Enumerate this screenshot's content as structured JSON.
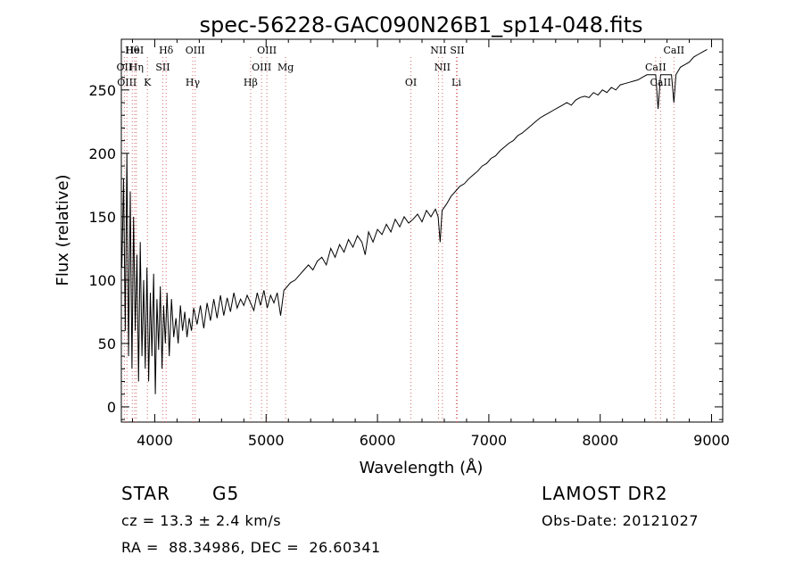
{
  "chart_data": {
    "type": "line",
    "title": "spec-56228-GAC090N26B1_sp14-048.fits",
    "xlabel": "Wavelength (Å)",
    "ylabel": "Flux (relative)",
    "xlim": [
      3700,
      9100
    ],
    "ylim": [
      -12,
      290
    ],
    "x_ticks": [
      4000,
      5000,
      6000,
      7000,
      8000,
      9000
    ],
    "y_ticks": [
      0,
      50,
      100,
      150,
      200,
      250
    ],
    "grid": false,
    "line_color": "#000000",
    "marker_line_color": "#d46a6a",
    "series": [
      {
        "x": [
          3705,
          3720,
          3735,
          3750,
          3765,
          3780,
          3795,
          3810,
          3825,
          3840,
          3855,
          3870,
          3885,
          3900,
          3915,
          3930,
          3945,
          3960,
          3975,
          3990,
          4005,
          4020,
          4035,
          4050,
          4065,
          4080,
          4095,
          4110,
          4130,
          4150,
          4170,
          4190,
          4210,
          4230,
          4250,
          4270,
          4290,
          4310,
          4330,
          4350,
          4380,
          4410,
          4440,
          4470,
          4500,
          4530,
          4560,
          4590,
          4620,
          4650,
          4680,
          4710,
          4740,
          4770,
          4800,
          4830,
          4860,
          4890,
          4920,
          4950,
          4980,
          5010,
          5040,
          5070,
          5100,
          5130,
          5160,
          5190,
          5220,
          5260,
          5300,
          5340,
          5380,
          5420,
          5460,
          5500,
          5540,
          5580,
          5620,
          5660,
          5700,
          5740,
          5780,
          5820,
          5860,
          5890,
          5920,
          5960,
          6000,
          6040,
          6080,
          6120,
          6160,
          6200,
          6240,
          6280,
          6320,
          6360,
          6400,
          6440,
          6480,
          6520,
          6545,
          6563,
          6580,
          6620,
          6660,
          6700,
          6740,
          6780,
          6820,
          6860,
          6900,
          6940,
          6980,
          7020,
          7060,
          7100,
          7140,
          7180,
          7220,
          7260,
          7300,
          7340,
          7380,
          7420,
          7460,
          7500,
          7540,
          7580,
          7620,
          7660,
          7700,
          7740,
          7780,
          7820,
          7860,
          7900,
          7940,
          7980,
          8020,
          8060,
          8100,
          8140,
          8180,
          8220,
          8260,
          8300,
          8340,
          8380,
          8420,
          8460,
          8498,
          8520,
          8542,
          8560,
          8600,
          8640,
          8662,
          8680,
          8720,
          8760,
          8800,
          8840,
          8880,
          8920,
          8960
        ],
        "y": [
          110,
          180,
          60,
          200,
          40,
          170,
          30,
          150,
          60,
          120,
          20,
          130,
          40,
          100,
          30,
          110,
          20,
          90,
          40,
          105,
          10,
          85,
          45,
          95,
          30,
          80,
          50,
          90,
          40,
          85,
          55,
          70,
          50,
          80,
          60,
          75,
          55,
          70,
          60,
          78,
          65,
          80,
          62,
          82,
          68,
          85,
          70,
          88,
          72,
          86,
          75,
          90,
          78,
          85,
          80,
          88,
          82,
          76,
          90,
          80,
          92,
          78,
          88,
          82,
          90,
          72,
          92,
          95,
          98,
          100,
          104,
          108,
          112,
          108,
          115,
          118,
          112,
          125,
          118,
          128,
          122,
          132,
          126,
          135,
          130,
          120,
          138,
          130,
          140,
          136,
          144,
          138,
          148,
          142,
          150,
          145,
          148,
          152,
          146,
          155,
          150,
          156,
          150,
          130,
          155,
          160,
          166,
          170,
          174,
          176,
          180,
          183,
          186,
          190,
          192,
          196,
          198,
          202,
          205,
          208,
          210,
          214,
          216,
          219,
          222,
          225,
          228,
          230,
          232,
          234,
          236,
          238,
          240,
          238,
          242,
          244,
          245,
          244,
          248,
          246,
          250,
          248,
          252,
          250,
          254,
          255,
          256,
          257,
          258,
          260,
          262,
          262,
          262,
          235,
          262,
          262,
          262,
          262,
          240,
          262,
          268,
          270,
          272,
          276,
          278,
          280,
          282
        ]
      }
    ],
    "lines": [
      {
        "label": "Hθ",
        "x": 3798
      },
      {
        "label": "OII",
        "x": 3727
      },
      {
        "label": "OIII",
        "x": 3750
      },
      {
        "label": "HeI",
        "x": 3820
      },
      {
        "label": "Hη",
        "x": 3835
      },
      {
        "label": "K",
        "x": 3934
      },
      {
        "label": "Hδ",
        "x": 4102
      },
      {
        "label": "SII",
        "x": 4072
      },
      {
        "label": "Hγ",
        "x": 4341
      },
      {
        "label": "OIII",
        "x": 4363
      },
      {
        "label": "OIII",
        "x": 4959
      },
      {
        "label": "Hβ",
        "x": 4861
      },
      {
        "label": "OIII",
        "x": 5007
      },
      {
        "label": "Mg",
        "x": 5175
      },
      {
        "label": "OI",
        "x": 6300
      },
      {
        "label": "NII",
        "x": 6548
      },
      {
        "label": "NII",
        "x": 6583
      },
      {
        "label": "Li",
        "x": 6708
      },
      {
        "label": "SII",
        "x": 6716
      },
      {
        "label": "CaII",
        "x": 8498
      },
      {
        "label": "CaII",
        "x": 8542
      },
      {
        "label": "CaII",
        "x": 8662
      }
    ]
  },
  "info": {
    "class": "STAR",
    "subclass": "G5",
    "survey": "LAMOST DR2",
    "cz": "cz = 13.3 ± 2.4 km/s",
    "obs_date": "Obs-Date: 20121027",
    "radec": "RA =  88.34986, DEC =  26.60341"
  }
}
